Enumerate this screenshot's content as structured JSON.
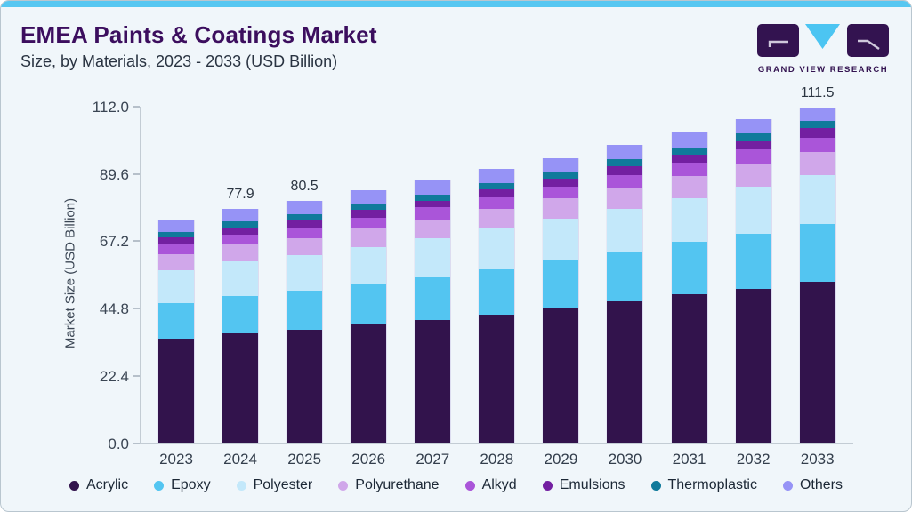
{
  "header": {
    "title": "EMEA Paints & Coatings Market",
    "subtitle": "Size, by Materials, 2023 - 2033 (USD Billion)"
  },
  "logo": {
    "text": "GRAND VIEW RESEARCH"
  },
  "colors": {
    "top_bar": "#57c7f1",
    "card_background": "#f0f6fa",
    "title_text": "#3c0e5e",
    "axis_text": "#3a4553",
    "logo_purple": "#331350",
    "logo_cyan": "#4cc5f2"
  },
  "chart_data": {
    "type": "bar",
    "stacked": true,
    "ylabel": "Market Size (USD Billion)",
    "ylim": [
      0,
      112
    ],
    "y_tick_labels": [
      "0.0",
      "22.4",
      "44.8",
      "67.2",
      "89.6",
      "112.0"
    ],
    "grid": false,
    "legend_position": "bottom",
    "categories": [
      "2023",
      "2024",
      "2025",
      "2026",
      "2027",
      "2028",
      "2029",
      "2030",
      "2031",
      "2032",
      "2033"
    ],
    "series": [
      {
        "name": "Acrylic",
        "color": "#32134c",
        "values": [
          34.8,
          36.5,
          37.9,
          39.6,
          41.0,
          42.9,
          44.9,
          47.2,
          49.6,
          51.5,
          53.8
        ]
      },
      {
        "name": "Epoxy",
        "color": "#53c5f1",
        "values": [
          11.9,
          12.5,
          13.0,
          13.6,
          14.3,
          15.1,
          15.8,
          16.6,
          17.4,
          18.3,
          19.2
        ]
      },
      {
        "name": "Polyester",
        "color": "#c3e8fa",
        "values": [
          10.8,
          11.4,
          11.6,
          12.0,
          12.9,
          13.3,
          13.9,
          14.2,
          14.6,
          15.6,
          16.1
        ]
      },
      {
        "name": "Polyurethane",
        "color": "#d0a7ea",
        "values": [
          5.4,
          5.6,
          5.8,
          6.1,
          6.3,
          6.5,
          6.8,
          7.0,
          7.4,
          7.4,
          7.8
        ]
      },
      {
        "name": "Alkyd",
        "color": "#aa55d9",
        "values": [
          3.3,
          3.4,
          3.5,
          3.7,
          3.9,
          4.0,
          4.0,
          4.3,
          4.3,
          4.8,
          4.7
        ]
      },
      {
        "name": "Emulsions",
        "color": "#731fa1",
        "values": [
          2.2,
          2.3,
          2.4,
          2.6,
          2.3,
          2.5,
          2.7,
          2.8,
          2.7,
          2.9,
          3.2
        ]
      },
      {
        "name": "Thermoplastic",
        "color": "#107a9b",
        "values": [
          1.9,
          2.0,
          2.0,
          2.1,
          2.1,
          2.2,
          2.2,
          2.4,
          2.3,
          2.5,
          2.3
        ]
      },
      {
        "name": "Others",
        "color": "#9693f6",
        "values": [
          3.9,
          4.2,
          4.3,
          4.3,
          4.5,
          4.6,
          4.5,
          4.6,
          4.9,
          4.7,
          4.4
        ]
      }
    ],
    "totals": [
      74.2,
      77.9,
      80.5,
      84.0,
      87.3,
      91.1,
      94.8,
      99.1,
      103.2,
      107.7,
      111.5
    ],
    "total_labels": {
      "2024": "77.9",
      "2025": "80.5",
      "2033": "111.5"
    }
  }
}
